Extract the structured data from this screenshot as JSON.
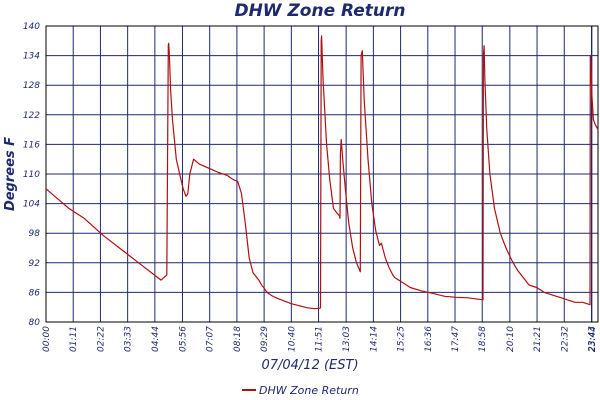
{
  "chart_data": {
    "type": "line",
    "title": "DHW Zone Return",
    "xlabel": "07/04/12 (EST)",
    "ylabel": "Degrees F",
    "ylim": [
      80,
      140
    ],
    "yticks": [
      80,
      86,
      92,
      98,
      104,
      110,
      116,
      122,
      128,
      134,
      140
    ],
    "xlim": [
      0,
      1440
    ],
    "xtick_labels": [
      "00:00",
      "01:11",
      "02:22",
      "03:33",
      "04:44",
      "05:56",
      "07:07",
      "08:18",
      "09:29",
      "10:40",
      "11:51",
      "13:03",
      "14:14",
      "15:25",
      "16:36",
      "17:47",
      "18:58",
      "20:10",
      "21:21",
      "22:32",
      "23:43",
      "23:44"
    ],
    "xtick_minutes": [
      0,
      71,
      142,
      213,
      284,
      356,
      427,
      498,
      569,
      640,
      711,
      783,
      854,
      925,
      996,
      1067,
      1138,
      1210,
      1281,
      1352,
      1423,
      1424
    ],
    "grid": true,
    "legend_position": "bottom-center",
    "series": [
      {
        "name": "DHW Zone Return",
        "color": "#b01010",
        "x": [
          0,
          30,
          60,
          100,
          150,
          200,
          250,
          280,
          300,
          315,
          319,
          320,
          322,
          325,
          330,
          340,
          350,
          358,
          365,
          370,
          375,
          385,
          400,
          430,
          450,
          470,
          475,
          480,
          490,
          500,
          510,
          520,
          530,
          540,
          555,
          560,
          564,
          568,
          572,
          575,
          580,
          590,
          600,
          620,
          640,
          660,
          680,
          700,
          715,
          716,
          718,
          719,
          721,
          723,
          727,
          732,
          740,
          750,
          760,
          766,
          767,
          768,
          770,
          775,
          782,
          790,
          800,
          810,
          818,
          820,
          822,
          825,
          830,
          840,
          850,
          860,
          870,
          875,
          885,
          895,
          905,
          910,
          930,
          950,
          980,
          1010,
          1040,
          1070,
          1100,
          1130,
          1140,
          1141,
          1143,
          1145,
          1150,
          1158,
          1170,
          1185,
          1200,
          1215,
          1230,
          1245,
          1260,
          1280,
          1300,
          1320,
          1340,
          1360,
          1380,
          1400,
          1419,
          1420,
          1421,
          1424,
          1428,
          1433,
          1440
        ],
        "y": [
          107,
          105,
          103,
          101,
          97.5,
          94.5,
          91.5,
          89.7,
          88.5,
          89.5,
          136,
          136.5,
          134,
          127,
          121,
          113,
          109.5,
          107,
          105.5,
          106,
          110,
          113,
          112,
          111,
          110.3,
          109.8,
          109.6,
          109.3,
          108.8,
          108.5,
          106,
          100,
          93,
          90,
          88.5,
          87.8,
          87.3,
          87,
          86.5,
          86.2,
          85.8,
          85.3,
          84.9,
          84.3,
          83.7,
          83.3,
          82.9,
          82.7,
          82.8,
          82.9,
          137,
          138,
          133,
          129,
          123,
          116,
          109,
          103,
          102,
          101.5,
          101,
          114,
          117,
          112,
          106,
          100,
          95,
          92,
          90.5,
          90.2,
          134,
          135,
          125,
          113,
          104,
          98.5,
          95.5,
          96,
          93,
          91,
          89.5,
          89,
          88,
          87,
          86.3,
          85.8,
          85.2,
          85,
          84.9,
          84.6,
          84.5,
          134,
          136,
          129,
          119,
          110,
          103,
          98,
          95,
          92.5,
          90.5,
          89,
          87.5,
          87,
          86,
          85.5,
          85,
          84.5,
          84,
          84,
          83.5,
          134,
          133,
          126,
          121,
          120,
          119
        ]
      }
    ]
  }
}
